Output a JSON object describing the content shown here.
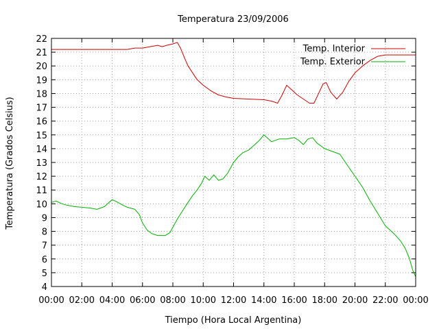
{
  "chart_data": {
    "type": "line",
    "title": "Temperatura 23/09/2006",
    "xlabel": "Tiempo (Hora Local Argentina)",
    "ylabel": "Temperatura (Grados Celsius)",
    "xlim": [
      0,
      24
    ],
    "ylim": [
      4,
      22
    ],
    "x_ticks": [
      0,
      2,
      4,
      6,
      8,
      10,
      12,
      14,
      16,
      18,
      20,
      22,
      24
    ],
    "x_tick_labels": [
      "00:00",
      "02:00",
      "04:00",
      "06:00",
      "08:00",
      "10:00",
      "12:00",
      "14:00",
      "16:00",
      "18:00",
      "20:00",
      "22:00",
      "00:00"
    ],
    "y_ticks": [
      4,
      5,
      6,
      7,
      8,
      9,
      10,
      11,
      12,
      13,
      14,
      15,
      16,
      17,
      18,
      19,
      20,
      21,
      22
    ],
    "grid": true,
    "legend_position": "top-right",
    "series": [
      {
        "name": "Temp. Interior",
        "color": "#cc0000",
        "points": [
          [
            0,
            21.2
          ],
          [
            1,
            21.2
          ],
          [
            2,
            21.2
          ],
          [
            3,
            21.2
          ],
          [
            4,
            21.2
          ],
          [
            5,
            21.2
          ],
          [
            5.5,
            21.3
          ],
          [
            6,
            21.3
          ],
          [
            6.5,
            21.4
          ],
          [
            7,
            21.5
          ],
          [
            7.3,
            21.4
          ],
          [
            7.6,
            21.5
          ],
          [
            8,
            21.6
          ],
          [
            8.3,
            21.7
          ],
          [
            8.5,
            21.3
          ],
          [
            8.8,
            20.5
          ],
          [
            9,
            20.0
          ],
          [
            9.3,
            19.5
          ],
          [
            9.6,
            19.0
          ],
          [
            10,
            18.6
          ],
          [
            10.5,
            18.2
          ],
          [
            11,
            17.9
          ],
          [
            11.5,
            17.75
          ],
          [
            12,
            17.65
          ],
          [
            13,
            17.6
          ],
          [
            14,
            17.55
          ],
          [
            14.5,
            17.45
          ],
          [
            14.9,
            17.3
          ],
          [
            15.2,
            17.9
          ],
          [
            15.5,
            18.6
          ],
          [
            15.8,
            18.3
          ],
          [
            16.2,
            17.9
          ],
          [
            16.6,
            17.6
          ],
          [
            17,
            17.3
          ],
          [
            17.3,
            17.3
          ],
          [
            17.6,
            18.0
          ],
          [
            17.9,
            18.7
          ],
          [
            18.1,
            18.8
          ],
          [
            18.4,
            18.1
          ],
          [
            18.8,
            17.6
          ],
          [
            19.2,
            18.1
          ],
          [
            19.6,
            18.9
          ],
          [
            20,
            19.5
          ],
          [
            20.5,
            20.0
          ],
          [
            21,
            20.4
          ],
          [
            21.5,
            20.7
          ],
          [
            22,
            20.8
          ],
          [
            23,
            20.8
          ],
          [
            24,
            20.8
          ]
        ]
      },
      {
        "name": "Temp. Exterior",
        "color": "#00b000",
        "points": [
          [
            0,
            10.1
          ],
          [
            0.3,
            10.2
          ],
          [
            0.7,
            10.0
          ],
          [
            1,
            9.9
          ],
          [
            1.5,
            9.8
          ],
          [
            2,
            9.75
          ],
          [
            2.5,
            9.7
          ],
          [
            3,
            9.6
          ],
          [
            3.5,
            9.8
          ],
          [
            3.8,
            10.1
          ],
          [
            4,
            10.3
          ],
          [
            4.3,
            10.15
          ],
          [
            4.7,
            9.9
          ],
          [
            5,
            9.75
          ],
          [
            5.5,
            9.6
          ],
          [
            5.8,
            9.2
          ],
          [
            6,
            8.6
          ],
          [
            6.3,
            8.1
          ],
          [
            6.6,
            7.85
          ],
          [
            7,
            7.7
          ],
          [
            7.5,
            7.7
          ],
          [
            7.8,
            7.9
          ],
          [
            8,
            8.3
          ],
          [
            8.3,
            8.9
          ],
          [
            8.7,
            9.6
          ],
          [
            9,
            10.1
          ],
          [
            9.3,
            10.6
          ],
          [
            9.6,
            11.0
          ],
          [
            9.9,
            11.5
          ],
          [
            10.1,
            12.0
          ],
          [
            10.4,
            11.7
          ],
          [
            10.7,
            12.1
          ],
          [
            11,
            11.7
          ],
          [
            11.3,
            11.8
          ],
          [
            11.6,
            12.2
          ],
          [
            11.8,
            12.6
          ],
          [
            12,
            13.0
          ],
          [
            12.3,
            13.4
          ],
          [
            12.6,
            13.7
          ],
          [
            13,
            13.9
          ],
          [
            13.4,
            14.3
          ],
          [
            13.7,
            14.6
          ],
          [
            14,
            15.0
          ],
          [
            14.2,
            14.8
          ],
          [
            14.5,
            14.5
          ],
          [
            15,
            14.7
          ],
          [
            15.5,
            14.7
          ],
          [
            16,
            14.8
          ],
          [
            16.3,
            14.6
          ],
          [
            16.6,
            14.3
          ],
          [
            16.9,
            14.7
          ],
          [
            17.2,
            14.8
          ],
          [
            17.5,
            14.4
          ],
          [
            18,
            14.0
          ],
          [
            18.5,
            13.8
          ],
          [
            19,
            13.6
          ],
          [
            19.5,
            12.8
          ],
          [
            20,
            12.0
          ],
          [
            20.5,
            11.2
          ],
          [
            21,
            10.2
          ],
          [
            21.5,
            9.3
          ],
          [
            22,
            8.4
          ],
          [
            22.3,
            8.1
          ],
          [
            22.6,
            7.8
          ],
          [
            23,
            7.3
          ],
          [
            23.3,
            6.8
          ],
          [
            23.6,
            6.0
          ],
          [
            23.8,
            5.2
          ],
          [
            24,
            4.7
          ]
        ]
      }
    ]
  }
}
